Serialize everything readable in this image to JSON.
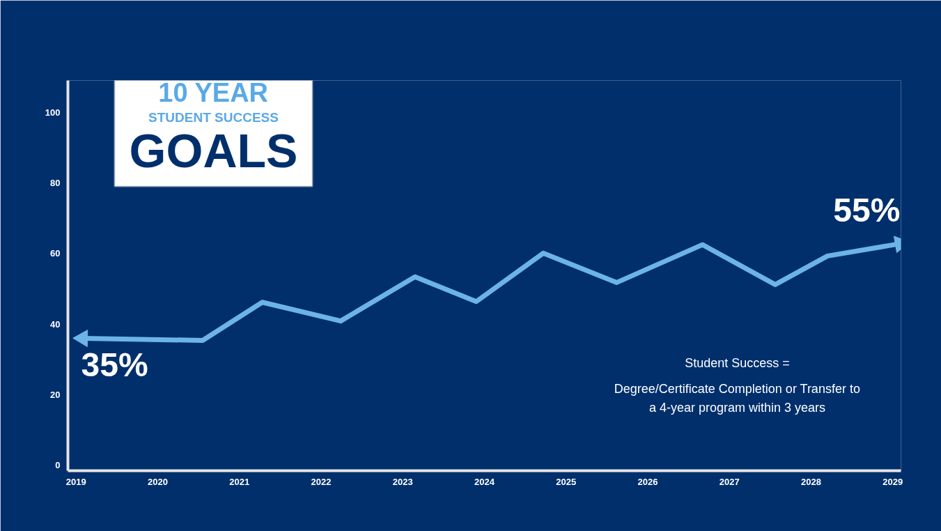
{
  "chart_data": {
    "type": "line",
    "title": "10 YEAR",
    "subtitle": "STUDENT SUCCESS",
    "grid": false,
    "marker": "none",
    "line_style": "solid",
    "x": [
      2019.08,
      2020.55,
      2021.28,
      2022.24,
      2023.15,
      2023.9,
      2024.72,
      2025.62,
      2026.67,
      2027.56,
      2028.2,
      2029.09
    ],
    "series": [
      {
        "color": "#6cb4e6",
        "values": [
          36.0,
          35.4,
          46.2,
          40.9,
          53.4,
          46.4,
          60.1,
          51.8,
          62.5,
          51.2,
          59.3,
          62.8
        ]
      }
    ],
    "xlim": [
      2018.9,
      2029.1
    ],
    "xticks": [
      2019,
      2020,
      2021,
      2022,
      2023,
      2024,
      2025,
      2026,
      2027,
      2028,
      2029
    ],
    "ylim": [
      -1.5,
      109
    ],
    "yticks": [
      0,
      20,
      40,
      60,
      80,
      100
    ],
    "annotations": [
      "GOALS",
      {
        "text": "35%",
        "x": 2019.08,
        "y": 36.0
      },
      {
        "text": "55%",
        "x": 2029.09,
        "y": 62.8
      },
      "Student Success =",
      "Degree/Certificate Completion or Transfer to\na 4-year program within 3 years"
    ]
  }
}
